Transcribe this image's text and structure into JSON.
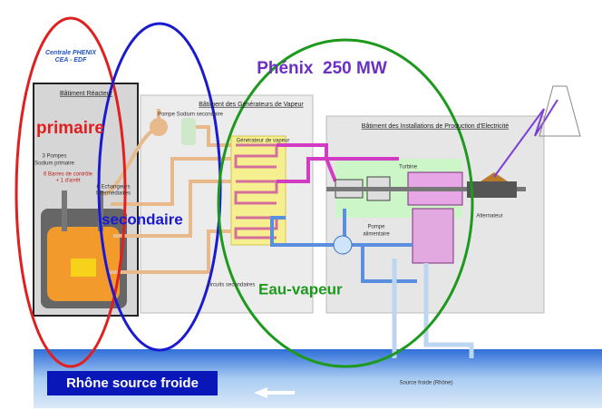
{
  "header": {
    "plant": "Centrale PHENIX",
    "operator": "CEA - EDF",
    "title": "Phénix  250 MW"
  },
  "buildings": {
    "reactor": "Bâtiment Réacteur",
    "steam": "Bâtiment des Générateurs de Vapeur",
    "power": "Bâtiment des Installations de Production d'Electricité"
  },
  "components": {
    "primary_pumps_1": "3 Pompes",
    "primary_pumps_2": "Sodium primaire",
    "rods_1": "6 Barres de contrôle",
    "rods_2": "+ 1 d'arrêt",
    "exchangers_1": "6 Echangeurs",
    "exchangers_2": "Intermédiaires",
    "secondary_pump": "Pompe Sodium secondaire",
    "steam_generator": "Générateur de vapeur",
    "secondary_circuits": "circuits secondaires",
    "turbine": "Turbine",
    "feed_pump_1": "Pompe",
    "feed_pump_2": "alimentaire",
    "alternator": "Alternateur",
    "cold_source": "Source froide (Rhône)"
  },
  "circuits": {
    "primary": "primaire",
    "secondary": "secondaire",
    "water_steam": "Eau-vapeur",
    "cold_source": "Rhône source froide"
  }
}
